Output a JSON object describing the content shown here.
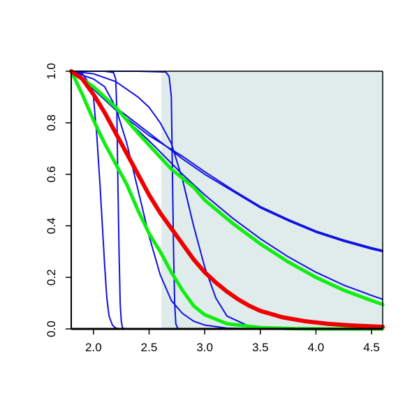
{
  "chart_data": {
    "type": "line",
    "title": "",
    "xlabel": "",
    "ylabel": "",
    "xlim": [
      1.8,
      4.6
    ],
    "ylim": [
      0.0,
      1.0
    ],
    "grid": false,
    "x_ticks": [
      2.0,
      2.5,
      3.0,
      3.5,
      4.0,
      4.5
    ],
    "x_tick_labels": [
      "2.0",
      "2.5",
      "3.0",
      "3.5",
      "4.0",
      "4.5"
    ],
    "y_ticks": [
      0.0,
      0.2,
      0.4,
      0.6,
      0.8,
      1.0
    ],
    "y_tick_labels": [
      "0.0",
      "0.2",
      "0.4",
      "0.6",
      "0.8",
      "1.0"
    ],
    "shaded_region": {
      "x_start": 2.61,
      "x_end": 4.6,
      "color": "#e0ecec"
    },
    "colors": {
      "blue": "#1010e0",
      "red": "#ee0000",
      "green": "#10ee10",
      "axis": "#000000"
    },
    "series": [
      {
        "color": "blue",
        "width": 2,
        "x": [
          1.8,
          1.9,
          1.95,
          2.0,
          2.03,
          2.06,
          2.08,
          2.1,
          2.12,
          2.14,
          2.17,
          2.2,
          2.25,
          2.3
        ],
        "y": [
          1.0,
          0.99,
          0.96,
          0.9,
          0.75,
          0.55,
          0.4,
          0.25,
          0.12,
          0.05,
          0.015,
          0.003,
          0.0,
          0.0
        ]
      },
      {
        "color": "blue",
        "width": 2,
        "x": [
          1.8,
          2.1,
          2.18,
          2.2,
          2.21,
          2.22,
          2.23,
          2.24,
          2.25,
          2.26,
          2.28,
          2.3
        ],
        "y": [
          1.0,
          1.0,
          0.995,
          0.97,
          0.85,
          0.55,
          0.3,
          0.1,
          0.03,
          0.005,
          0.0,
          0.0
        ]
      },
      {
        "color": "blue",
        "width": 2,
        "x": [
          1.8,
          2.4,
          2.65,
          2.68,
          2.7,
          2.71,
          2.72,
          2.73,
          2.74,
          2.76,
          2.8
        ],
        "y": [
          1.0,
          1.0,
          0.997,
          0.98,
          0.9,
          0.6,
          0.3,
          0.1,
          0.02,
          0.0,
          0.0
        ]
      },
      {
        "color": "blue",
        "width": 2,
        "x": [
          1.8,
          2.0,
          2.1,
          2.2,
          2.3,
          2.4,
          2.5,
          2.6,
          2.7,
          2.8,
          2.9,
          3.0,
          3.2,
          3.5
        ],
        "y": [
          1.0,
          0.97,
          0.94,
          0.86,
          0.72,
          0.54,
          0.36,
          0.21,
          0.11,
          0.06,
          0.03,
          0.015,
          0.003,
          0.0
        ]
      },
      {
        "color": "blue",
        "width": 2,
        "x": [
          1.8,
          2.0,
          2.2,
          2.4,
          2.5,
          2.6,
          2.7,
          2.8,
          2.9,
          3.0,
          3.1,
          3.2,
          3.4,
          3.6
        ],
        "y": [
          1.0,
          0.99,
          0.96,
          0.9,
          0.86,
          0.8,
          0.72,
          0.58,
          0.4,
          0.24,
          0.12,
          0.05,
          0.01,
          0.0
        ]
      },
      {
        "color": "blue",
        "width": 2,
        "x": [
          1.8,
          2.0,
          2.2,
          2.5,
          2.8,
          3.0,
          3.25,
          3.5,
          3.75,
          4.0,
          4.25,
          4.5,
          4.6
        ],
        "y": [
          1.0,
          0.93,
          0.86,
          0.76,
          0.66,
          0.6,
          0.535,
          0.47,
          0.42,
          0.375,
          0.34,
          0.31,
          0.3
        ]
      },
      {
        "color": "blue",
        "width": 2,
        "x": [
          1.8,
          2.0,
          2.2,
          2.5,
          2.8,
          3.0,
          3.25,
          3.5,
          3.75,
          4.0,
          4.25,
          4.5,
          4.6
        ],
        "y": [
          1.0,
          0.93,
          0.85,
          0.75,
          0.67,
          0.61,
          0.54,
          0.475,
          0.425,
          0.38,
          0.345,
          0.315,
          0.305
        ]
      },
      {
        "color": "blue",
        "width": 2,
        "x": [
          1.8,
          2.0,
          2.2,
          2.5,
          2.8,
          3.0,
          3.25,
          3.5,
          3.75,
          4.0,
          4.25,
          4.5,
          4.6
        ],
        "y": [
          1.0,
          0.93,
          0.85,
          0.73,
          0.6,
          0.52,
          0.43,
          0.35,
          0.28,
          0.22,
          0.17,
          0.13,
          0.115
        ]
      },
      {
        "color": "green",
        "width": 5,
        "x": [
          1.8,
          2.0,
          2.2,
          2.4,
          2.55,
          2.7,
          2.9,
          3.0,
          3.25,
          3.5,
          3.75,
          4.0,
          4.25,
          4.5,
          4.6
        ],
        "y": [
          1.0,
          0.94,
          0.86,
          0.76,
          0.69,
          0.62,
          0.55,
          0.5,
          0.41,
          0.33,
          0.26,
          0.2,
          0.15,
          0.11,
          0.095
        ]
      },
      {
        "color": "green",
        "width": 5,
        "x": [
          1.8,
          1.9,
          2.0,
          2.1,
          2.2,
          2.3,
          2.4,
          2.5,
          2.6,
          2.7,
          2.8,
          2.9,
          3.0,
          3.2,
          3.5,
          3.8,
          4.1,
          4.4,
          4.6
        ],
        "y": [
          1.0,
          0.91,
          0.81,
          0.72,
          0.64,
          0.56,
          0.46,
          0.37,
          0.3,
          0.22,
          0.15,
          0.09,
          0.055,
          0.02,
          0.005,
          0.001,
          0.0,
          0.0,
          0.0
        ]
      },
      {
        "color": "red",
        "width": 6,
        "x": [
          1.8,
          1.9,
          2.0,
          2.1,
          2.2,
          2.3,
          2.4,
          2.5,
          2.6,
          2.7,
          2.8,
          2.9,
          3.0,
          3.1,
          3.2,
          3.3,
          3.4,
          3.5,
          3.7,
          3.9,
          4.1,
          4.3,
          4.6
        ],
        "y": [
          1.0,
          0.97,
          0.91,
          0.84,
          0.76,
          0.68,
          0.6,
          0.52,
          0.45,
          0.39,
          0.33,
          0.27,
          0.22,
          0.18,
          0.145,
          0.115,
          0.09,
          0.07,
          0.045,
          0.03,
          0.02,
          0.014,
          0.008
        ]
      }
    ]
  }
}
